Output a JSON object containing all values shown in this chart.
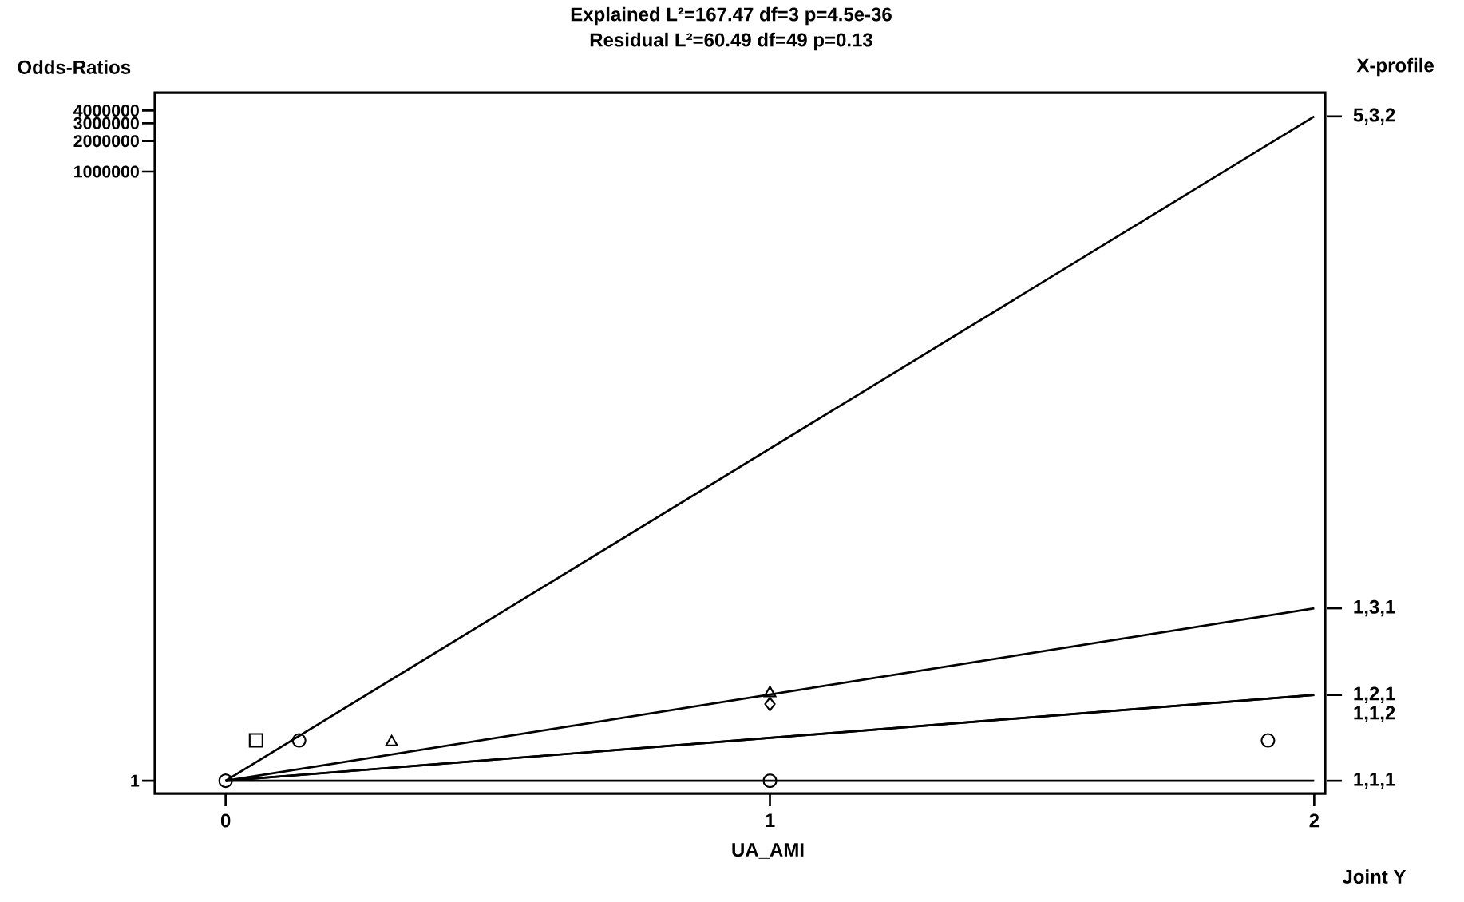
{
  "chart_data": {
    "type": "line",
    "title": "Explained L²=167.47 df=3 p=4.5e-36",
    "subtitle": "Residual L²=60.49 df=49 p=0.13",
    "xlabel": "UA_AMI",
    "ylabel": "Odds-Ratios",
    "y2label": "X-profile",
    "annotations": [
      "Joint Y"
    ],
    "log": "y",
    "xlim": [
      -0.13,
      2.02
    ],
    "ylim": [
      0.75,
      6000000
    ],
    "xticks": [
      0,
      1,
      2
    ],
    "yticks": [
      1,
      1000000,
      2000000,
      3000000,
      4000000
    ],
    "legend": "right",
    "line_style": "solid",
    "marker": "none",
    "series": [
      {
        "name": "5,3,2",
        "color": "#000000",
        "x": [
          0,
          2
        ],
        "values": [
          1,
          3500000
        ]
      },
      {
        "name": "1,3,1",
        "color": "#000000",
        "x": [
          0,
          2
        ],
        "values": [
          1,
          50
        ]
      },
      {
        "name": "1,2,1",
        "color": "#000000",
        "x": [
          0,
          2
        ],
        "values": [
          1,
          7
        ]
      },
      {
        "name": "1,1,2",
        "color": "#000000",
        "x": [
          0,
          2
        ],
        "values": [
          1,
          7
        ]
      },
      {
        "name": "1,1,1",
        "color": "#000000",
        "x": [
          0,
          2
        ],
        "values": [
          1,
          1
        ]
      },
      {
        "type": "scatter",
        "marker": "circle",
        "color": "#000000",
        "x": [
          0,
          1,
          1.915,
          0.135
        ],
        "values": [
          1,
          1,
          2.5,
          2.5
        ]
      },
      {
        "type": "scatter",
        "marker": "square",
        "color": "#000000",
        "x": [
          0.056
        ],
        "values": [
          2.5
        ]
      },
      {
        "type": "scatter",
        "marker": "triangle",
        "color": "#000000",
        "x": [
          0.305,
          1
        ],
        "values": [
          2.4,
          7.3
        ]
      },
      {
        "type": "scatter",
        "marker": "diamond",
        "color": "#000000",
        "x": [
          1
        ],
        "values": [
          5.7
        ]
      }
    ]
  }
}
